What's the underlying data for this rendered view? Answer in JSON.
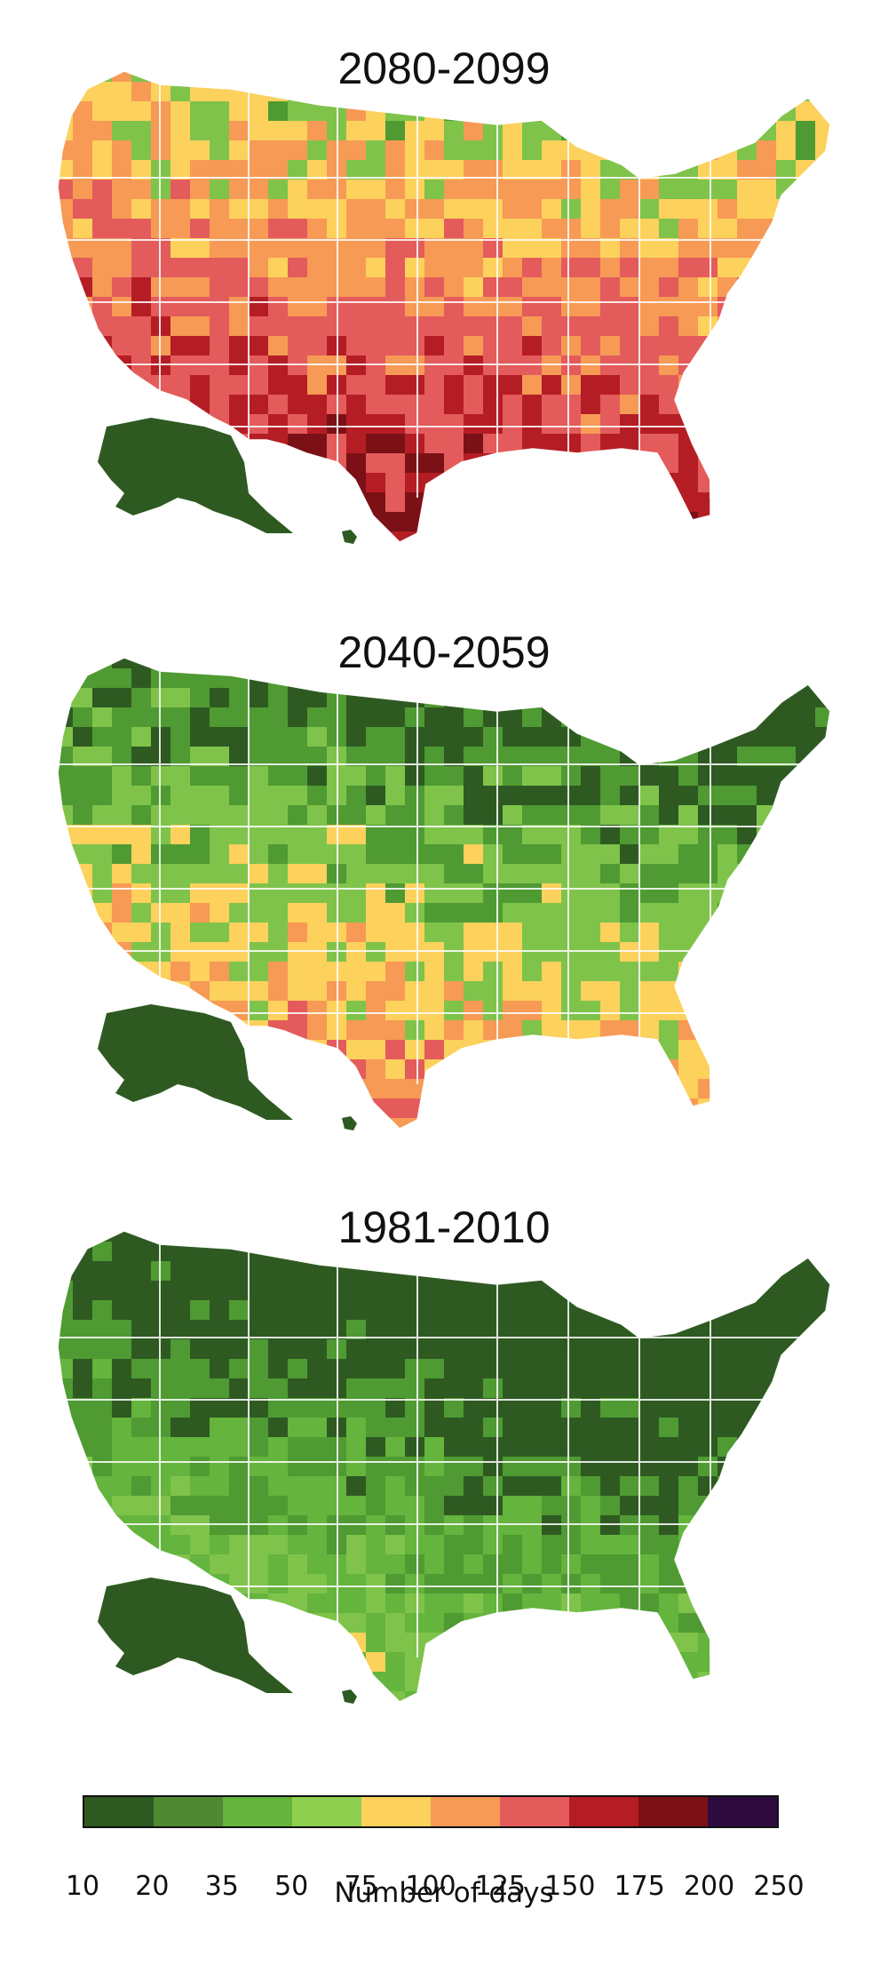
{
  "panels": [
    {
      "title": "2080-2099",
      "palette": [
        "#fcd15c",
        "#f69a56",
        "#e45b5b",
        "#b51d24",
        "#7b1117",
        "#7fc34b",
        "#4f9a32",
        "#2e5a22",
        "#f0a050",
        "#dd5d5e"
      ]
    },
    {
      "title": "2040-2059",
      "palette": [
        "#4f9a32",
        "#7fc34b",
        "#2e5a22",
        "#64b43d",
        "#fcd15c",
        "#f69a56",
        "#e45b5b",
        "#4f9a32",
        "#7fc34b",
        "#2e5a22"
      ]
    },
    {
      "title": "1981-2010",
      "palette": [
        "#2e5a22",
        "#2e5a22",
        "#4f9a32",
        "#2e5a22",
        "#64b43d",
        "#7fc34b",
        "#2e5a22",
        "#4f9a32",
        "#2e5a22",
        "#fcd15c"
      ]
    }
  ],
  "legend": {
    "colors": [
      "#2e5a22",
      "#4f8a32",
      "#64b43d",
      "#8fcf50",
      "#fcd15c",
      "#f69a56",
      "#e45b5b",
      "#b51d24",
      "#7b1117",
      "#2e0b3f"
    ],
    "ticks": [
      "10",
      "20",
      "35",
      "50",
      "75",
      "100",
      "125",
      "150",
      "175",
      "200",
      "250"
    ],
    "caption": "Number of days"
  }
}
